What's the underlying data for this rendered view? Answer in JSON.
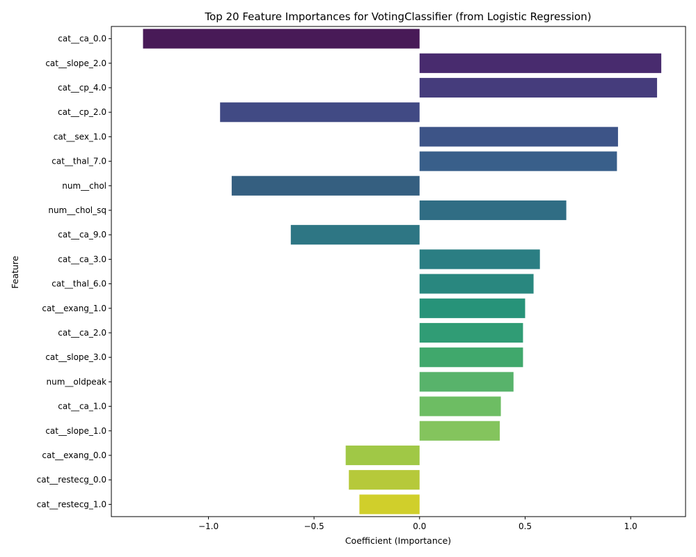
{
  "chart_data": {
    "type": "bar",
    "orientation": "horizontal",
    "title": "Top 20 Feature Importances for VotingClassifier (from Logistic Regression)",
    "xlabel": "Coefficient (Importance)",
    "ylabel": "Feature",
    "xlim": [
      -1.46,
      1.26
    ],
    "xticks": [
      -1.0,
      -0.5,
      0.0,
      0.5,
      1.0
    ],
    "xtick_labels": [
      "−1.0",
      "−0.5",
      "0.0",
      "0.5",
      "1.0"
    ],
    "grid": false,
    "legend": "none",
    "palette": "viridis",
    "categories": [
      "cat__ca_0.0",
      "cat__slope_2.0",
      "cat__cp_4.0",
      "cat__cp_2.0",
      "cat__sex_1.0",
      "cat__thal_7.0",
      "num__chol",
      "num__chol_sq",
      "cat__ca_9.0",
      "cat__ca_3.0",
      "cat__thal_6.0",
      "cat__exang_1.0",
      "cat__ca_2.0",
      "cat__slope_3.0",
      "num__oldpeak",
      "cat__ca_1.0",
      "cat__slope_1.0",
      "cat__exang_0.0",
      "cat__restecg_0.0",
      "cat__restecg_1.0"
    ],
    "values": [
      -1.31,
      1.145,
      1.125,
      -0.945,
      0.94,
      0.935,
      -0.89,
      0.695,
      -0.61,
      0.57,
      0.54,
      0.5,
      0.49,
      0.49,
      0.445,
      0.385,
      0.38,
      -0.35,
      -0.335,
      -0.285
    ],
    "colors": [
      "#481a57",
      "#482b6e",
      "#453c7c",
      "#414a84",
      "#3d5487",
      "#395f8a",
      "#355f80",
      "#306d84",
      "#2e7684",
      "#2b7e83",
      "#29877f",
      "#279379",
      "#309c75",
      "#40a86c",
      "#58b36b",
      "#6dbd63",
      "#84c45d",
      "#a0c846",
      "#b6c93a",
      "#d0cf2b"
    ]
  }
}
